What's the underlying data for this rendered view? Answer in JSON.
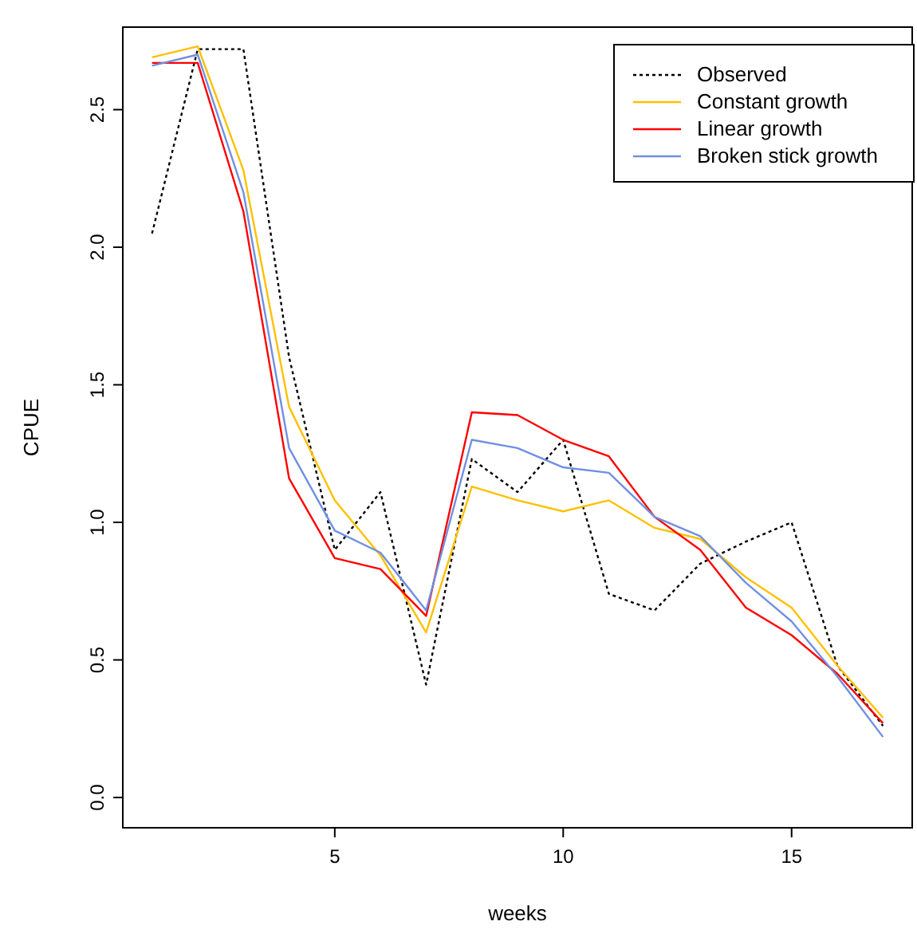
{
  "chart_data": {
    "type": "line",
    "xlabel": "weeks",
    "ylabel": "CPUE",
    "x": [
      1,
      2,
      3,
      4,
      5,
      6,
      7,
      8,
      9,
      10,
      11,
      12,
      13,
      14,
      15,
      16,
      17
    ],
    "xlim": [
      0.36,
      17.64
    ],
    "ylim": [
      -0.11,
      2.8
    ],
    "xticks": [
      5,
      10,
      15
    ],
    "yticks": [
      {
        "value": 0,
        "label": "0.0"
      },
      {
        "value": 0.5,
        "label": "0.5"
      },
      {
        "value": 1,
        "label": "1.0"
      },
      {
        "value": 1.5,
        "label": "1.5"
      },
      {
        "value": 2,
        "label": "2.0"
      },
      {
        "value": 2.5,
        "label": "2.5"
      }
    ],
    "grid": false,
    "legend": "top right",
    "series": [
      {
        "name": "Observed",
        "color": "#000000",
        "line_style": "dotted",
        "values": [
          2.05,
          2.72,
          2.72,
          1.6,
          0.9,
          1.11,
          0.41,
          1.23,
          1.11,
          1.3,
          0.74,
          0.68,
          0.85,
          0.93,
          1.0,
          0.48,
          0.26
        ]
      },
      {
        "name": "Constant growth",
        "color": "#ffc000",
        "line_style": "solid",
        "values": [
          2.69,
          2.73,
          2.28,
          1.42,
          1.08,
          0.88,
          0.6,
          1.13,
          1.08,
          1.04,
          1.08,
          0.98,
          0.94,
          0.8,
          0.69,
          0.48,
          0.29
        ]
      },
      {
        "name": "Linear growth",
        "color": "#ff0000",
        "line_style": "solid",
        "values": [
          2.67,
          2.67,
          2.13,
          1.16,
          0.87,
          0.83,
          0.66,
          1.4,
          1.39,
          1.3,
          1.24,
          1.02,
          0.9,
          0.69,
          0.59,
          0.45,
          0.27
        ]
      },
      {
        "name": "Broken stick growth",
        "color": "#7090e0",
        "line_style": "solid",
        "values": [
          2.66,
          2.7,
          2.2,
          1.27,
          0.97,
          0.89,
          0.68,
          1.3,
          1.27,
          1.2,
          1.18,
          1.02,
          0.95,
          0.78,
          0.64,
          0.44,
          0.22
        ]
      }
    ]
  }
}
